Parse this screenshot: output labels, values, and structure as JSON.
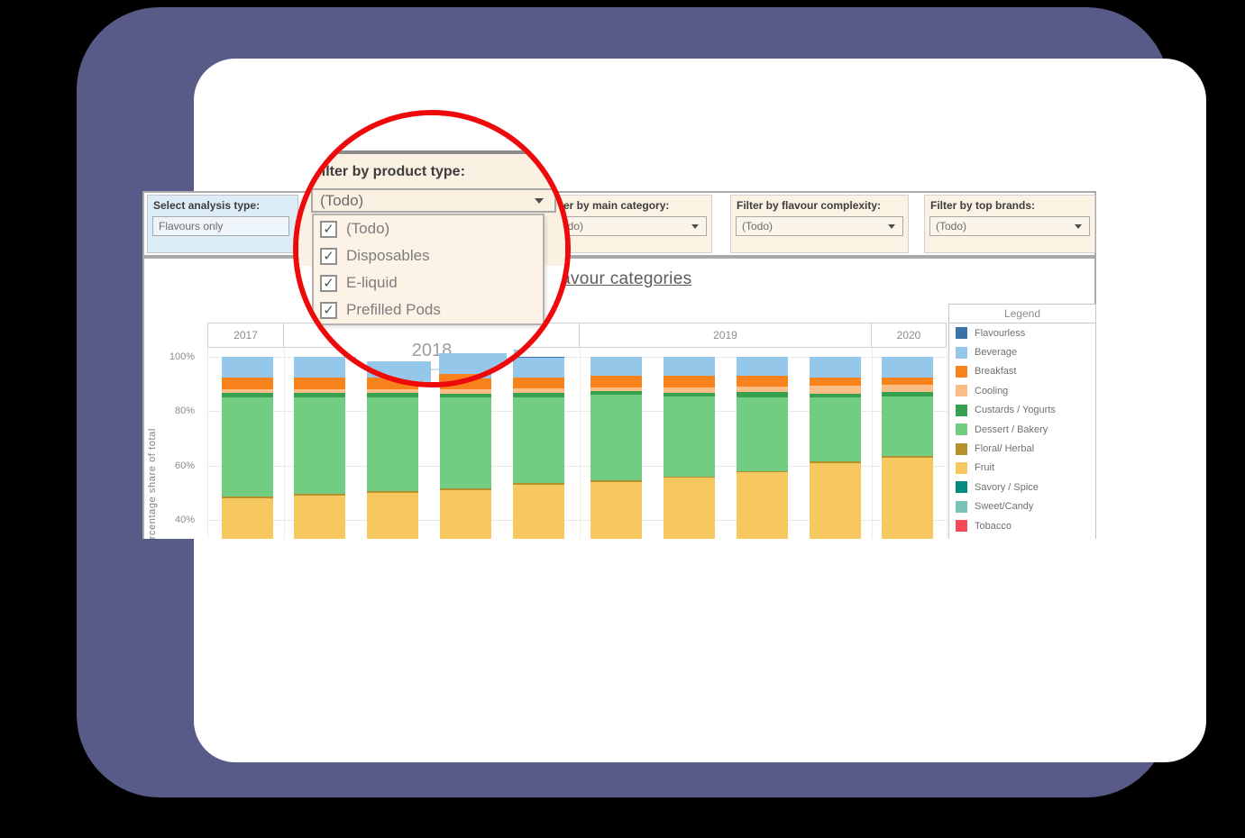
{
  "colors": {
    "bezel_purple": "#585b87",
    "annotation_ring_red": "#ee0a0a",
    "filter_box_cream": "#fcf2e3",
    "analysis_box_blue": "#ddedf8"
  },
  "filters": {
    "analysis": {
      "label": "Select analysis type:",
      "value": "Flavours only"
    },
    "product_type": {
      "label": "Filter by product type:",
      "value": "(Todo)"
    },
    "main_category": {
      "label": "Filter by main category:",
      "value": "(Todo)"
    },
    "flavour_complexity": {
      "label": "Filter by flavour complexity:",
      "value": "(Todo)"
    },
    "top_brands": {
      "label": "Filter by top brands:",
      "value": "(Todo)"
    }
  },
  "lens": {
    "panel_label": "Filter by product type:",
    "dropdown_value": "(Todo)",
    "options": [
      {
        "label": "(Todo)",
        "checked": true
      },
      {
        "label": "Disposables",
        "checked": true
      },
      {
        "label": "E-liquid",
        "checked": true
      },
      {
        "label": "Prefilled Pods",
        "checked": true
      }
    ],
    "year_label": "2018"
  },
  "chart_data": {
    "type": "bar",
    "subtype": "100%-stacked-bar",
    "title_visible": "flavour categories",
    "ylabel": "Percentage share of total",
    "yticks": [
      {
        "pct": 100,
        "label": "100%"
      },
      {
        "pct": 80,
        "label": "80%"
      },
      {
        "pct": 60,
        "label": "60%"
      },
      {
        "pct": 40,
        "label": "40%"
      }
    ],
    "groups": [
      {
        "label": "2017",
        "bars": 1
      },
      {
        "label": "2018",
        "bars": 4
      },
      {
        "label": "2019",
        "bars": 4
      },
      {
        "label": "2020",
        "bars": 1
      }
    ],
    "stack_bottom_to_top": [
      "Fruit",
      "Floral/ Herbal",
      "Dessert / Bakery",
      "Custards / Yogurts",
      "Cooling",
      "Breakfast",
      "Beverage",
      "Flavourless"
    ],
    "series": {
      "Fruit": [
        48,
        49,
        50,
        51,
        53,
        54,
        55.5,
        57.5,
        61,
        63
      ],
      "Floral/ Herbal": [
        0.5,
        0.5,
        0.5,
        0.5,
        0.5,
        0.5,
        0.5,
        0.5,
        0.5,
        0.5
      ],
      "Dessert / Bakery": [
        36.5,
        35.5,
        34.5,
        33.5,
        31.5,
        31.5,
        29.5,
        27,
        23.5,
        22
      ],
      "Custards / Yogurts": [
        1.8,
        1.8,
        1.8,
        1.5,
        1.7,
        1.5,
        1.3,
        2,
        1.5,
        1.5
      ],
      "Cooling": [
        1.2,
        1.4,
        1.4,
        1.5,
        1.6,
        1.3,
        2,
        2,
        3,
        2.8
      ],
      "Breakfast": [
        4.5,
        4.3,
        4.3,
        4,
        4.2,
        4.2,
        4.2,
        4,
        3,
        2.7
      ],
      "Beverage": [
        7.5,
        7.5,
        7.5,
        8,
        7.2,
        7,
        7,
        7,
        7.5,
        7.5
      ],
      "Flavourless": [
        0,
        0,
        0,
        0,
        0.3,
        0,
        0,
        0,
        0,
        0
      ]
    },
    "legend": {
      "title": "Legend",
      "items": [
        {
          "label": "Flavourless",
          "color": "#3973a6"
        },
        {
          "label": "Beverage",
          "color": "#94c7e9"
        },
        {
          "label": "Breakfast",
          "color": "#f8821c"
        },
        {
          "label": "Cooling",
          "color": "#f9bd85"
        },
        {
          "label": "Custards / Yogurts",
          "color": "#35a14f"
        },
        {
          "label": "Dessert / Bakery",
          "color": "#72cc82"
        },
        {
          "label": "Floral/ Herbal",
          "color": "#b3912c"
        },
        {
          "label": "Fruit",
          "color": "#f6c85f"
        },
        {
          "label": "Savory / Spice",
          "color": "#048b80"
        },
        {
          "label": "Sweet/Candy",
          "color": "#79c2b6"
        },
        {
          "label": "Tobacco",
          "color": "#f54a57"
        }
      ]
    }
  }
}
